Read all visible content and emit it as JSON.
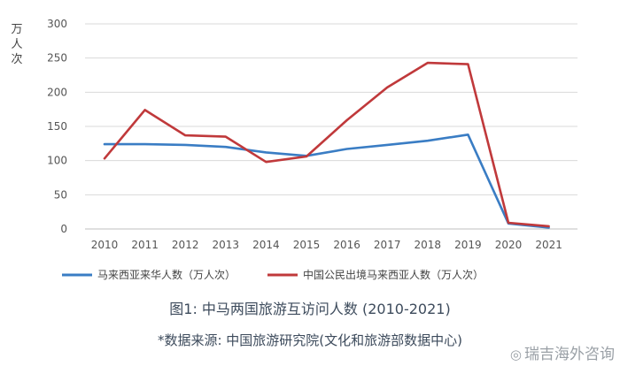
{
  "chart_data": {
    "type": "line",
    "ylabel": "万人次",
    "ylim": [
      0,
      300
    ],
    "yticks": [
      0,
      50,
      100,
      150,
      200,
      250,
      300
    ],
    "x": [
      2010,
      2011,
      2012,
      2013,
      2014,
      2015,
      2016,
      2017,
      2018,
      2019,
      2020,
      2021
    ],
    "x_labels": [
      "2010",
      "2011",
      "2012",
      "2013",
      "2014",
      "2015",
      "2016",
      "2017",
      "2018",
      "2019",
      "2020",
      "2021"
    ],
    "grid": true,
    "legend_position": "bottom",
    "series": [
      {
        "name": "马来西亚来华人数（万人次）",
        "color": "#3a7dc4",
        "values": [
          124,
          124,
          123,
          120,
          112,
          107,
          117,
          123,
          129,
          138,
          8,
          2
        ]
      },
      {
        "name": "中国公民出境马来西亚人数（万人次）",
        "color": "#c0393b",
        "values": [
          103,
          174,
          137,
          135,
          98,
          106,
          159,
          207,
          243,
          241,
          9,
          4
        ]
      }
    ]
  },
  "figure_caption": "图1: 中马两国旅游互访问人数 (2010-2021)",
  "source_caption": "*数据来源: 中国旅游研究院(文化和旅游部数据中心)",
  "watermark": {
    "logo_icon": "weibo-logo-icon",
    "text": "瑞吉海外咨询"
  }
}
